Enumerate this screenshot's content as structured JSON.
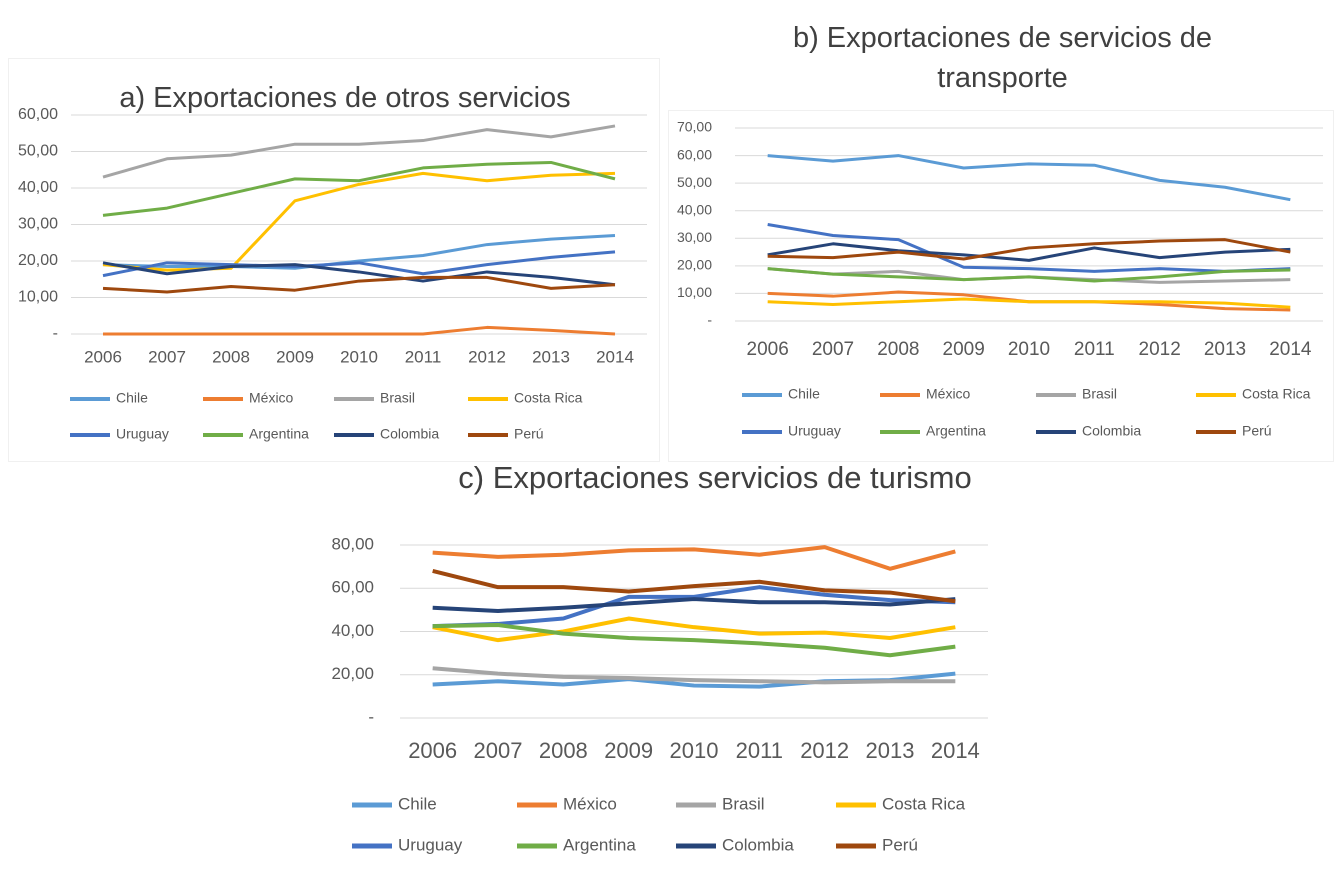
{
  "chart_data": [
    {
      "type": "line",
      "title": "a) Exportaciones de otros servicios",
      "categories": [
        "2006",
        "2007",
        "2008",
        "2009",
        "2010",
        "2011",
        "2012",
        "2013",
        "2014"
      ],
      "ylim": [
        0,
        60
      ],
      "yticks": [
        {
          "value": 0,
          "label": "-"
        },
        {
          "value": 10,
          "label": "10,00"
        },
        {
          "value": 20,
          "label": "20,00"
        },
        {
          "value": 30,
          "label": "30,00"
        },
        {
          "value": 40,
          "label": "40,00"
        },
        {
          "value": 50,
          "label": "50,00"
        },
        {
          "value": 60,
          "label": "60,00"
        }
      ],
      "grid": true,
      "legend": "bottom",
      "series": [
        {
          "name": "Chile",
          "color": "#5b9bd5",
          "values": [
            19,
            18.5,
            18.5,
            18,
            20,
            21.5,
            24.5,
            26,
            27
          ]
        },
        {
          "name": "México",
          "color": "#ed7d31",
          "values": [
            0,
            0,
            0,
            0,
            0,
            0,
            1.8,
            1,
            0
          ]
        },
        {
          "name": "Brasil",
          "color": "#a5a5a5",
          "values": [
            43,
            48,
            49,
            52,
            52,
            53,
            56,
            54,
            57
          ]
        },
        {
          "name": "Costa Rica",
          "color": "#ffc000",
          "values": [
            19,
            17.5,
            18,
            36.5,
            41,
            44,
            42,
            43.5,
            44
          ]
        },
        {
          "name": "Uruguay",
          "color": "#4472c4",
          "values": [
            16,
            19.5,
            19,
            18.5,
            19.5,
            16.5,
            19,
            21,
            22.5
          ]
        },
        {
          "name": "Argentina",
          "color": "#70ad47",
          "values": [
            32.5,
            34.5,
            38.5,
            42.5,
            42,
            45.5,
            46.5,
            47,
            42.5
          ]
        },
        {
          "name": "Colombia",
          "color": "#264478",
          "values": [
            19.5,
            16.5,
            18.5,
            19,
            17,
            14.5,
            17,
            15.5,
            13.5
          ]
        },
        {
          "name": "Perú",
          "color": "#9e480e",
          "values": [
            12.5,
            11.5,
            13,
            12,
            14.5,
            15.5,
            15.5,
            12.5,
            13.5
          ]
        }
      ]
    },
    {
      "type": "line",
      "title": "b) Exportaciones de servicios de transporte",
      "categories": [
        "2006",
        "2007",
        "2008",
        "2009",
        "2010",
        "2011",
        "2012",
        "2013",
        "2014"
      ],
      "ylim": [
        0,
        70
      ],
      "yticks": [
        {
          "value": 0,
          "label": "-"
        },
        {
          "value": 10,
          "label": "10,00"
        },
        {
          "value": 20,
          "label": "20,00"
        },
        {
          "value": 30,
          "label": "30,00"
        },
        {
          "value": 40,
          "label": "40,00"
        },
        {
          "value": 50,
          "label": "50,00"
        },
        {
          "value": 60,
          "label": "60,00"
        },
        {
          "value": 70,
          "label": "70,00"
        }
      ],
      "grid": true,
      "legend": "bottom",
      "series": [
        {
          "name": "Chile",
          "color": "#5b9bd5",
          "values": [
            60,
            58,
            60,
            55.5,
            57,
            56.5,
            51,
            48.5,
            44
          ]
        },
        {
          "name": "México",
          "color": "#ed7d31",
          "values": [
            10,
            9,
            10.5,
            9.5,
            7,
            7,
            6,
            4.5,
            4
          ]
        },
        {
          "name": "Brasil",
          "color": "#a5a5a5",
          "values": [
            19,
            17,
            18,
            15,
            16,
            15,
            14,
            14.5,
            15
          ]
        },
        {
          "name": "Costa Rica",
          "color": "#ffc000",
          "values": [
            7,
            6,
            7,
            8,
            7,
            7,
            7,
            6.5,
            5
          ]
        },
        {
          "name": "Uruguay",
          "color": "#4472c4",
          "values": [
            35,
            31,
            29.5,
            19.5,
            19,
            18,
            19,
            18,
            19
          ]
        },
        {
          "name": "Argentina",
          "color": "#70ad47",
          "values": [
            19,
            17,
            16,
            15,
            16,
            14.5,
            16,
            18,
            18.5
          ]
        },
        {
          "name": "Colombia",
          "color": "#264478",
          "values": [
            24,
            28,
            25.5,
            24,
            22,
            26.5,
            23,
            25,
            26
          ]
        },
        {
          "name": "Perú",
          "color": "#9e480e",
          "values": [
            23.5,
            23,
            25,
            22.5,
            26.5,
            28,
            29,
            29.5,
            25
          ]
        }
      ]
    },
    {
      "type": "line",
      "title": "c) Exportaciones servicios de turismo",
      "categories": [
        "2006",
        "2007",
        "2008",
        "2009",
        "2010",
        "2011",
        "2012",
        "2013",
        "2014"
      ],
      "ylim": [
        0,
        80
      ],
      "yticks": [
        {
          "value": 0,
          "label": "-"
        },
        {
          "value": 20,
          "label": "20,00"
        },
        {
          "value": 40,
          "label": "40,00"
        },
        {
          "value": 60,
          "label": "60,00"
        },
        {
          "value": 80,
          "label": "80,00"
        }
      ],
      "grid": true,
      "legend": "bottom",
      "series": [
        {
          "name": "Chile",
          "color": "#5b9bd5",
          "values": [
            15.5,
            17,
            15.5,
            18,
            15,
            14.5,
            17,
            17.5,
            20.5
          ]
        },
        {
          "name": "México",
          "color": "#ed7d31",
          "values": [
            76.5,
            74.5,
            75.5,
            77.5,
            78,
            75.5,
            79,
            69,
            77
          ]
        },
        {
          "name": "Brasil",
          "color": "#a5a5a5",
          "values": [
            23,
            20.5,
            19,
            18.5,
            17.5,
            17,
            16.5,
            17,
            17
          ]
        },
        {
          "name": "Costa Rica",
          "color": "#ffc000",
          "values": [
            42,
            36,
            40,
            46,
            42,
            39,
            39.5,
            37,
            42
          ]
        },
        {
          "name": "Uruguay",
          "color": "#4472c4",
          "values": [
            42.5,
            43.5,
            46,
            56,
            56,
            60.5,
            57,
            54.5,
            53.5
          ]
        },
        {
          "name": "Argentina",
          "color": "#70ad47",
          "values": [
            42.5,
            43,
            39,
            37,
            36,
            34.5,
            32.5,
            29,
            33
          ]
        },
        {
          "name": "Colombia",
          "color": "#264478",
          "values": [
            51,
            49.5,
            51,
            53,
            55,
            53.5,
            53.5,
            52.5,
            55
          ]
        },
        {
          "name": "Perú",
          "color": "#9e480e",
          "values": [
            68,
            60.5,
            60.5,
            58.5,
            61,
            63,
            59,
            58,
            54
          ]
        }
      ]
    }
  ]
}
